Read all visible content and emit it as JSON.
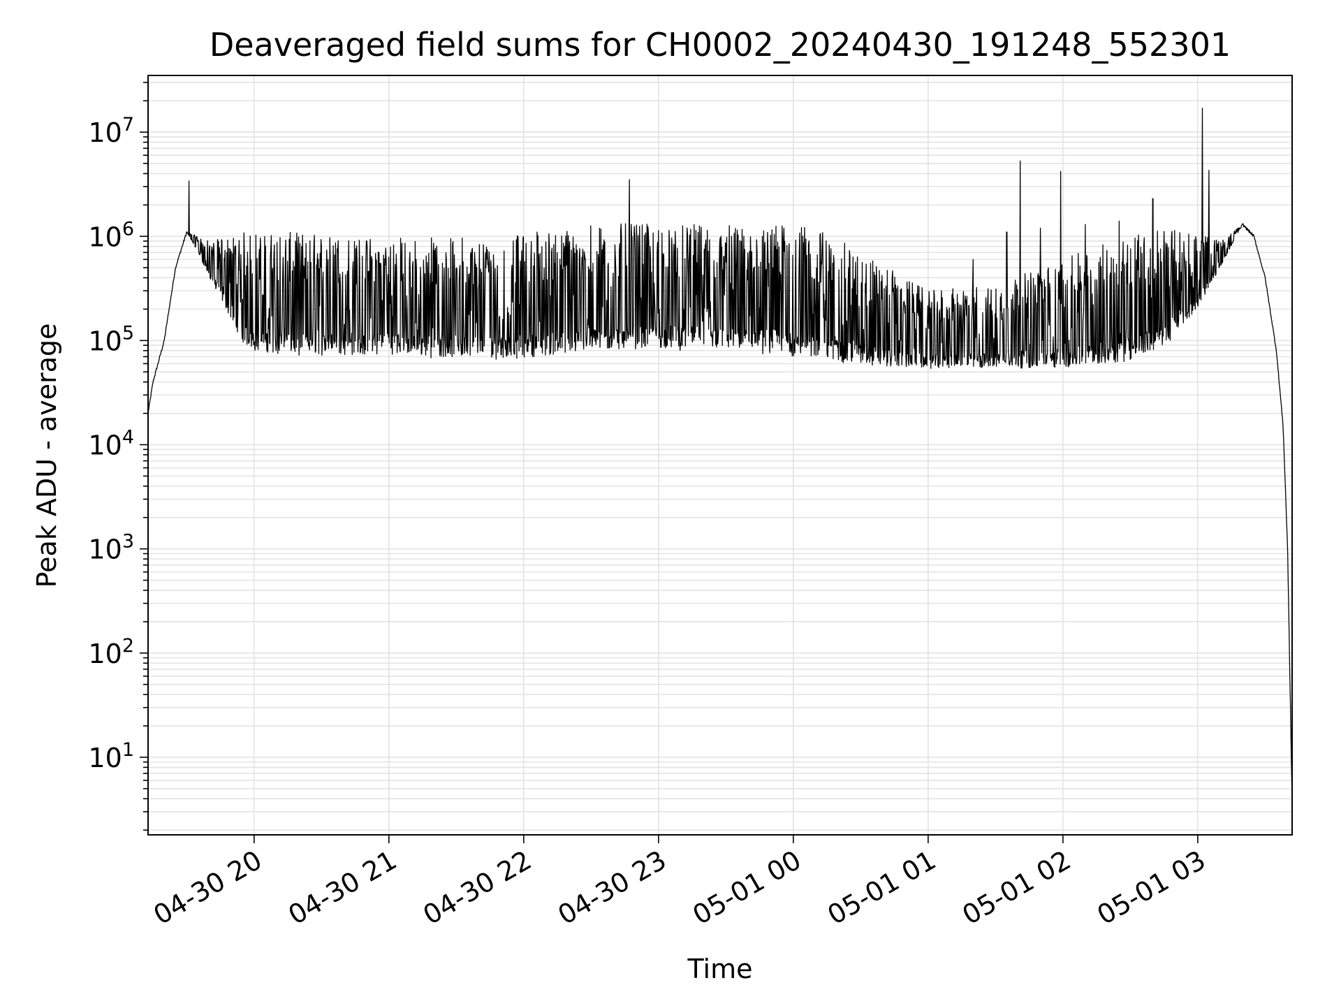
{
  "chart_data": {
    "type": "line",
    "title": "Deaveraged field sums for CH0002_20240430_191248_552301",
    "xlabel": "Time",
    "ylabel": "Peak ADU - average",
    "y_scale": "log",
    "ylim": [
      1.8,
      35000000
    ],
    "xlim": [
      "2024-04-30 19:12:48",
      "2024-05-01 03:42:00"
    ],
    "grid": true,
    "grid_color": "#e3e3e3",
    "line_color": "#000000",
    "x_ticks": [
      {
        "label": "04-30 20",
        "t": "2024-04-30 20:00"
      },
      {
        "label": "04-30 21",
        "t": "2024-04-30 21:00"
      },
      {
        "label": "04-30 22",
        "t": "2024-04-30 22:00"
      },
      {
        "label": "04-30 23",
        "t": "2024-04-30 23:00"
      },
      {
        "label": "05-01 00",
        "t": "2024-05-01 00:00"
      },
      {
        "label": "05-01 01",
        "t": "2024-05-01 01:00"
      },
      {
        "label": "05-01 02",
        "t": "2024-05-01 02:00"
      },
      {
        "label": "05-01 03",
        "t": "2024-05-01 03:00"
      }
    ],
    "y_ticks": [
      {
        "base": "10",
        "exp": "1",
        "value": 10
      },
      {
        "base": "10",
        "exp": "2",
        "value": 100
      },
      {
        "base": "10",
        "exp": "3",
        "value": 1000
      },
      {
        "base": "10",
        "exp": "4",
        "value": 10000
      },
      {
        "base": "10",
        "exp": "5",
        "value": 100000
      },
      {
        "base": "10",
        "exp": "6",
        "value": 1000000
      },
      {
        "base": "10",
        "exp": "7",
        "value": 10000000
      }
    ],
    "series": [
      {
        "envelope": [
          [
            "2024-04-30 19:12:48",
            20000,
            20000
          ],
          [
            "2024-04-30 19:15",
            40000,
            40000
          ],
          [
            "2024-04-30 19:20",
            100000,
            100000
          ],
          [
            "2024-04-30 19:25",
            500000,
            500000
          ],
          [
            "2024-04-30 19:30",
            1100000,
            1100000
          ],
          [
            "2024-04-30 19:35",
            700000,
            1000000
          ],
          [
            "2024-04-30 19:40",
            400000,
            900000
          ],
          [
            "2024-04-30 19:45",
            250000,
            950000
          ],
          [
            "2024-04-30 19:50",
            150000,
            1000000
          ],
          [
            "2024-04-30 19:55",
            90000,
            1100000
          ],
          [
            "2024-04-30 20:00",
            75000,
            1100000
          ],
          [
            "2024-04-30 20:15",
            70000,
            1100000
          ],
          [
            "2024-04-30 20:30",
            70000,
            1050000
          ],
          [
            "2024-04-30 20:45",
            68000,
            1000000
          ],
          [
            "2024-04-30 21:00",
            70000,
            1000000
          ],
          [
            "2024-04-30 21:30",
            65000,
            1000000
          ],
          [
            "2024-04-30 22:00",
            65000,
            1050000
          ],
          [
            "2024-04-30 22:20",
            70000,
            1200000
          ],
          [
            "2024-04-30 22:30",
            75000,
            1350000
          ],
          [
            "2024-04-30 23:00",
            80000,
            1300000
          ],
          [
            "2024-04-30 23:30",
            78000,
            1300000
          ],
          [
            "2024-05-01 00:00",
            70000,
            1300000
          ],
          [
            "2024-05-01 00:15",
            60000,
            1100000
          ],
          [
            "2024-05-01 00:30",
            55000,
            700000
          ],
          [
            "2024-05-01 01:00",
            52000,
            300000
          ],
          [
            "2024-05-01 01:30",
            52000,
            350000
          ],
          [
            "2024-05-01 02:00",
            52000,
            600000
          ],
          [
            "2024-05-01 02:30",
            60000,
            1100000
          ],
          [
            "2024-05-01 02:45",
            85000,
            1200000
          ],
          [
            "2024-05-01 03:00",
            200000,
            1100000
          ],
          [
            "2024-05-01 03:10",
            500000,
            900000
          ],
          [
            "2024-05-01 03:20",
            1300000,
            1300000
          ],
          [
            "2024-05-01 03:25",
            1000000,
            1000000
          ],
          [
            "2024-05-01 03:30",
            400000,
            400000
          ],
          [
            "2024-05-01 03:35",
            80000,
            80000
          ],
          [
            "2024-05-01 03:38",
            15000,
            15000
          ],
          [
            "2024-05-01 03:40",
            1000,
            1000
          ],
          [
            "2024-05-01 03:42",
            3.8,
            3.8
          ]
        ],
        "spikes": [
          [
            "2024-04-30 19:31",
            3400000
          ],
          [
            "2024-04-30 22:47",
            3500000
          ],
          [
            "2024-04-30 22:06",
            1100000
          ],
          [
            "2024-05-01 01:41",
            5300000
          ],
          [
            "2024-05-01 01:59",
            4200000
          ],
          [
            "2024-05-01 02:40",
            2300000
          ],
          [
            "2024-05-01 03:02",
            17000000
          ],
          [
            "2024-05-01 03:05",
            4300000
          ],
          [
            "2024-05-01 01:20",
            600000
          ],
          [
            "2024-05-01 01:35",
            1100000
          ],
          [
            "2024-05-01 01:50",
            1200000
          ],
          [
            "2024-05-01 02:10",
            1300000
          ],
          [
            "2024-05-01 02:25",
            1400000
          ]
        ]
      }
    ]
  }
}
